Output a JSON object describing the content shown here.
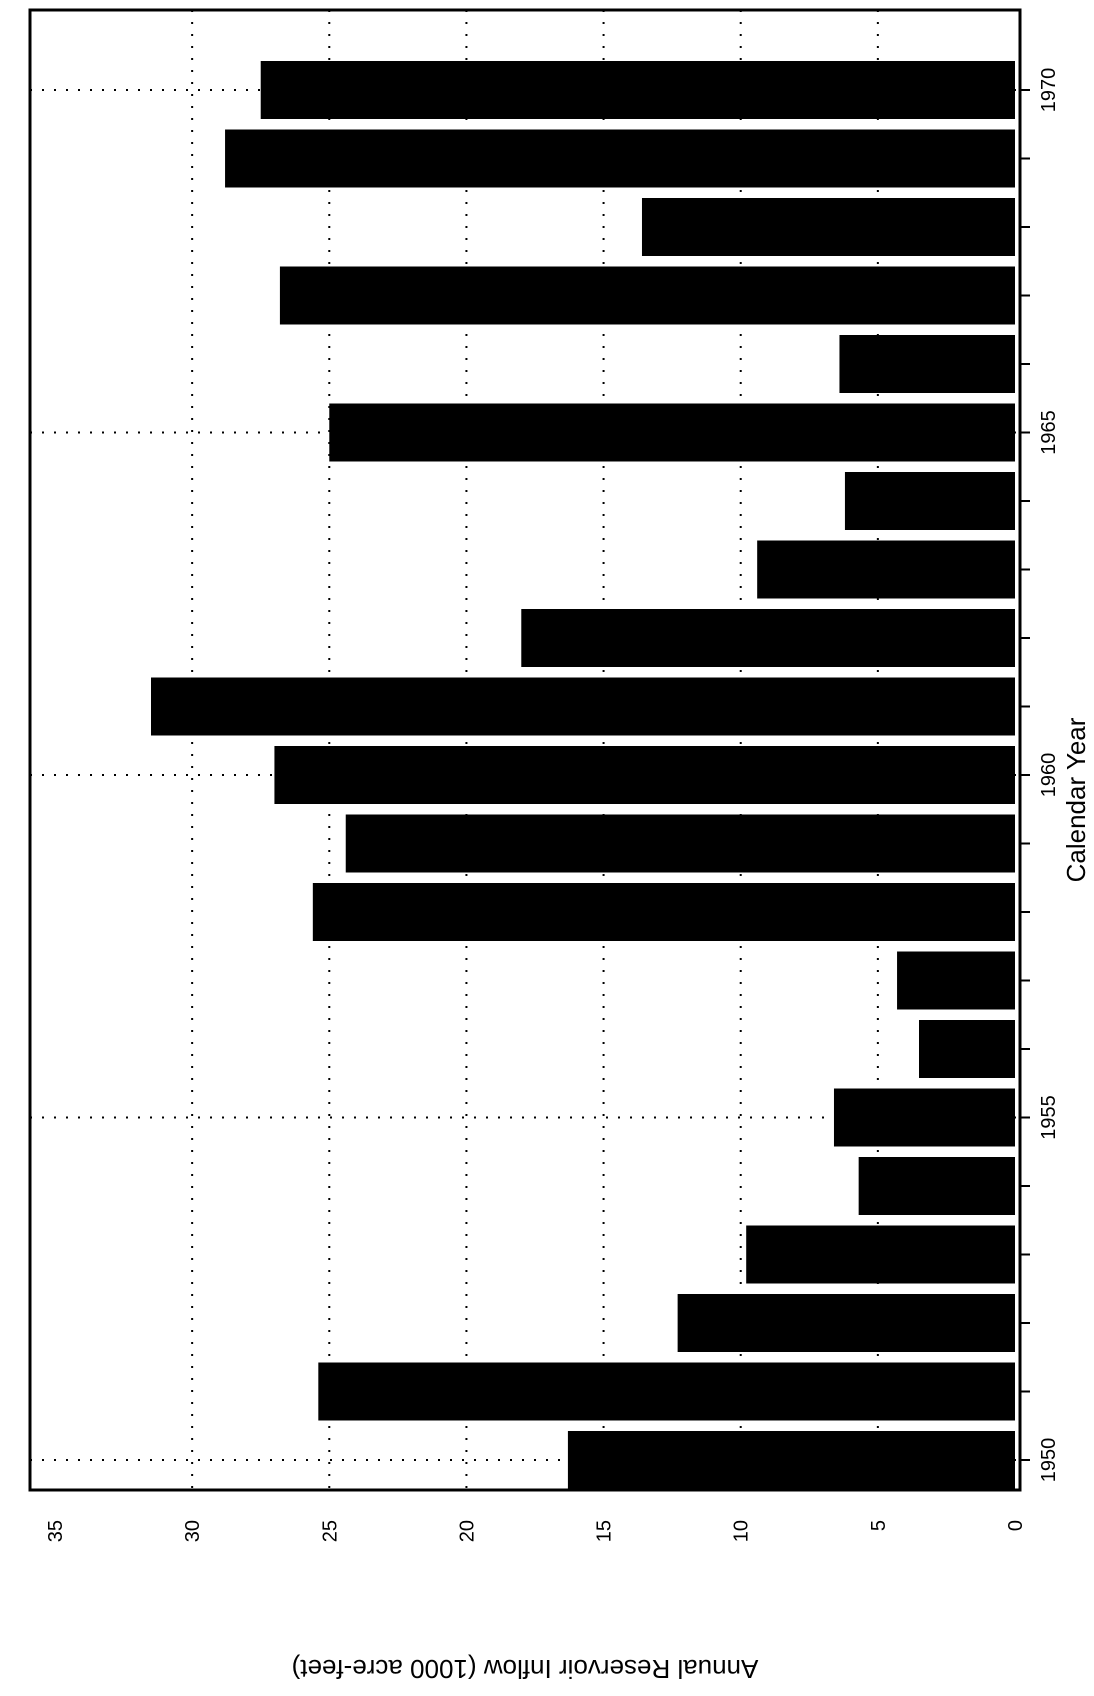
{
  "chart_data": {
    "type": "bar",
    "orientation": "rotated-page",
    "xlabel": "Calendar Year",
    "ylabel": "Annual Reservoir Inflow (1000 acre-feet)",
    "xlim": [
      1949.5,
      1970.5
    ],
    "ylim": [
      0,
      35
    ],
    "x_ticks": [
      1950,
      1955,
      1960,
      1965,
      1970
    ],
    "y_ticks": [
      0,
      5,
      10,
      15,
      20,
      25,
      30,
      35
    ],
    "grid": true,
    "bar_color": "#000000",
    "x": [
      1950,
      1951,
      1952,
      1953,
      1954,
      1955,
      1956,
      1957,
      1958,
      1959,
      1960,
      1961,
      1962,
      1963,
      1964,
      1965,
      1966,
      1967,
      1968,
      1969,
      1970
    ],
    "values": [
      16.3,
      25.4,
      12.3,
      9.8,
      5.7,
      6.6,
      3.5,
      4.3,
      25.6,
      24.4,
      27.0,
      31.5,
      18.0,
      9.4,
      6.2,
      25.0,
      6.4,
      26.8,
      13.6,
      28.8,
      27.5
    ]
  }
}
